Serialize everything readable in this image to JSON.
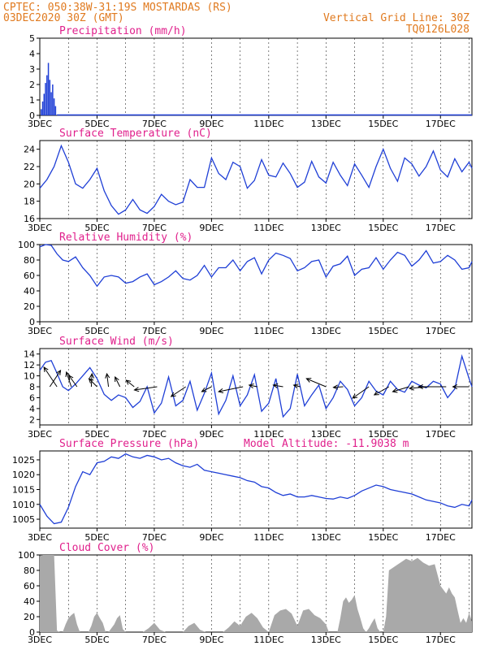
{
  "header": {
    "left_line1": "CPTEC:  050:38W-31:19S  MOSTARDAS (RS)",
    "left_line2": "03DEC2020 30Z (GMT)",
    "right_line1": "Vertical Grid Line: 30Z",
    "right_line2": "TQ0126L028",
    "model_altitude": "Model Altitude: -11.9038 m"
  },
  "colors": {
    "header_text": "#e07a1f",
    "panel_title": "#e0208c",
    "series_line": "#1f3fd6",
    "bar_blue": "#1f3fd6",
    "cloud_fill": "#a9a9a9",
    "wind_arrow": "#000000"
  },
  "x_axis": {
    "ticks": [
      "3DEC",
      "5DEC",
      "7DEC",
      "9DEC",
      "11DEC",
      "13DEC",
      "15DEC",
      "17DEC"
    ],
    "tick_days": [
      3,
      5,
      7,
      9,
      11,
      13,
      15,
      17
    ],
    "range": [
      3,
      18.1
    ]
  },
  "chart_data": [
    {
      "type": "bar",
      "title": "Precipitation (mm/h)",
      "ylim": [
        0,
        5
      ],
      "yticks": [
        0,
        1,
        2,
        3,
        4,
        5
      ],
      "x": [
        3.05,
        3.1,
        3.15,
        3.2,
        3.25,
        3.3,
        3.35,
        3.4,
        3.45,
        3.5,
        3.55
      ],
      "values": [
        0.4,
        0.9,
        1.4,
        2.1,
        2.6,
        3.4,
        2.3,
        1.5,
        2.0,
        1.1,
        0.6
      ]
    },
    {
      "type": "line",
      "title": "Surface Temperature (nC)",
      "ylim": [
        16,
        25
      ],
      "yticks": [
        16,
        18,
        20,
        22,
        24
      ],
      "x": [
        3.0,
        3.25,
        3.5,
        3.75,
        4.0,
        4.25,
        4.5,
        4.75,
        5.0,
        5.25,
        5.5,
        5.75,
        6.0,
        6.25,
        6.5,
        6.75,
        7.0,
        7.25,
        7.5,
        7.75,
        8.0,
        8.25,
        8.5,
        8.75,
        9.0,
        9.25,
        9.5,
        9.75,
        10.0,
        10.25,
        10.5,
        10.75,
        11.0,
        11.25,
        11.5,
        11.75,
        12.0,
        12.25,
        12.5,
        12.75,
        13.0,
        13.25,
        13.5,
        13.75,
        14.0,
        14.25,
        14.5,
        14.75,
        15.0,
        15.25,
        15.5,
        15.75,
        16.0,
        16.25,
        16.5,
        16.75,
        17.0,
        17.25,
        17.5,
        17.75,
        18.0,
        18.1
      ],
      "values": [
        19.5,
        20.5,
        22.0,
        24.4,
        22.5,
        20.0,
        19.5,
        20.5,
        21.8,
        19.2,
        17.5,
        16.5,
        17.0,
        18.2,
        17.0,
        16.6,
        17.4,
        18.8,
        18.0,
        17.6,
        17.9,
        20.5,
        19.6,
        19.6,
        23.0,
        21.2,
        20.5,
        22.5,
        22.0,
        19.5,
        20.4,
        22.8,
        21.0,
        20.8,
        22.4,
        21.2,
        19.6,
        20.2,
        22.6,
        20.8,
        20.1,
        22.5,
        21.0,
        19.8,
        22.3,
        21.0,
        19.6,
        22.0,
        24.0,
        21.8,
        20.3,
        23.0,
        22.3,
        20.9,
        22.0,
        23.8,
        21.6,
        20.8,
        22.9,
        21.4,
        22.5,
        21.8
      ]
    },
    {
      "type": "line",
      "title": "Relative Humidity (%)",
      "ylim": [
        0,
        100
      ],
      "yticks": [
        0,
        20,
        40,
        60,
        80,
        100
      ],
      "x": [
        3.0,
        3.2,
        3.4,
        3.6,
        3.8,
        4.0,
        4.25,
        4.5,
        4.75,
        5.0,
        5.25,
        5.5,
        5.75,
        6.0,
        6.25,
        6.5,
        6.75,
        7.0,
        7.25,
        7.5,
        7.75,
        8.0,
        8.25,
        8.5,
        8.75,
        9.0,
        9.25,
        9.5,
        9.75,
        10.0,
        10.25,
        10.5,
        10.75,
        11.0,
        11.25,
        11.5,
        11.75,
        12.0,
        12.25,
        12.5,
        12.75,
        13.0,
        13.25,
        13.5,
        13.75,
        14.0,
        14.25,
        14.5,
        14.75,
        15.0,
        15.25,
        15.5,
        15.75,
        16.0,
        16.25,
        16.5,
        16.75,
        17.0,
        17.25,
        17.5,
        17.75,
        18.0,
        18.1
      ],
      "values": [
        97,
        100,
        99,
        88,
        80,
        78,
        84,
        70,
        60,
        46,
        58,
        60,
        58,
        50,
        52,
        58,
        62,
        48,
        52,
        58,
        66,
        56,
        54,
        60,
        73,
        58,
        70,
        70,
        80,
        66,
        78,
        83,
        62,
        80,
        89,
        86,
        82,
        66,
        70,
        78,
        80,
        58,
        72,
        75,
        85,
        60,
        68,
        70,
        83,
        68,
        80,
        90,
        86,
        72,
        80,
        92,
        76,
        78,
        86,
        80,
        68,
        70,
        78
      ]
    },
    {
      "type": "line",
      "title": "Surface Wind (m/s)",
      "ylim": [
        1,
        15
      ],
      "yticks": [
        2,
        4,
        6,
        8,
        10,
        12,
        14
      ],
      "x": [
        3.0,
        3.2,
        3.4,
        3.6,
        3.8,
        4.0,
        4.25,
        4.5,
        4.75,
        5.0,
        5.25,
        5.5,
        5.75,
        6.0,
        6.25,
        6.5,
        6.75,
        7.0,
        7.25,
        7.5,
        7.75,
        8.0,
        8.25,
        8.5,
        8.75,
        9.0,
        9.25,
        9.5,
        9.75,
        10.0,
        10.25,
        10.5,
        10.75,
        11.0,
        11.25,
        11.5,
        11.75,
        12.0,
        12.25,
        12.5,
        12.75,
        13.0,
        13.25,
        13.5,
        13.75,
        14.0,
        14.25,
        14.5,
        14.75,
        15.0,
        15.25,
        15.5,
        15.75,
        16.0,
        16.25,
        16.5,
        16.75,
        17.0,
        17.25,
        17.5,
        17.75,
        18.0,
        18.1
      ],
      "values": [
        11,
        12.5,
        12.8,
        10.5,
        8.0,
        7.3,
        8.5,
        10.0,
        11.5,
        9.5,
        6.6,
        5.5,
        6.5,
        6.0,
        4.2,
        5.3,
        8.0,
        3.2,
        5.0,
        9.8,
        4.5,
        5.5,
        9.0,
        3.7,
        6.8,
        10.5,
        3.0,
        5.5,
        10.0,
        4.5,
        6.5,
        10.2,
        3.5,
        5.0,
        9.5,
        2.5,
        4.0,
        10.3,
        4.5,
        6.5,
        8.3,
        4.0,
        6.0,
        9.0,
        7.5,
        4.5,
        6.0,
        9.0,
        7.2,
        6.5,
        9.0,
        7.5,
        7.0,
        9.0,
        8.3,
        7.8,
        9.0,
        8.5,
        6.0,
        7.6,
        13.6,
        9.5,
        8.0
      ],
      "arrows": [
        {
          "x": 3.35,
          "u": 3.3,
          "v": -5.0
        },
        {
          "x": 3.6,
          "u": -4.0,
          "v": -6.0
        },
        {
          "x": 4.1,
          "u": -1.5,
          "v": -4.5
        },
        {
          "x": 4.3,
          "u": -2.5,
          "v": -3.5
        },
        {
          "x": 4.8,
          "u": 0.2,
          "v": -4.0
        },
        {
          "x": 5.0,
          "u": -2.5,
          "v": -2.5
        },
        {
          "x": 5.4,
          "u": -0.5,
          "v": -4.0
        },
        {
          "x": 5.8,
          "u": -1.5,
          "v": -3.0
        },
        {
          "x": 6.3,
          "u": -2.5,
          "v": -2.0
        },
        {
          "x": 7.1,
          "u": -7.0,
          "v": 1.0
        },
        {
          "x": 8.1,
          "u": -4.5,
          "v": 3.0
        },
        {
          "x": 9.0,
          "u": -3.0,
          "v": 1.5
        },
        {
          "x": 10.1,
          "u": -7.5,
          "v": 1.5
        },
        {
          "x": 10.6,
          "u": -2.5,
          "v": -0.5
        },
        {
          "x": 11.5,
          "u": -3.0,
          "v": -0.5
        },
        {
          "x": 12.1,
          "u": -2.0,
          "v": -0.5
        },
        {
          "x": 13.0,
          "u": -6.0,
          "v": -2.5
        },
        {
          "x": 13.6,
          "u": -3.0,
          "v": 0.2
        },
        {
          "x": 14.5,
          "u": -5.0,
          "v": 3.5
        },
        {
          "x": 15.2,
          "u": -4.5,
          "v": 2.5
        },
        {
          "x": 15.9,
          "u": -5.0,
          "v": 1.5
        },
        {
          "x": 16.6,
          "u": -6.0,
          "v": 0.5
        },
        {
          "x": 17.2,
          "u": -8.5,
          "v": 0.0
        },
        {
          "x": 18.0,
          "u": -5.0,
          "v": 0.0
        }
      ]
    },
    {
      "type": "line",
      "title": "Surface Pressure (hPa)",
      "ylim": [
        1002,
        1028
      ],
      "yticks": [
        1005,
        1010,
        1015,
        1020,
        1025
      ],
      "x": [
        3.0,
        3.25,
        3.5,
        3.75,
        4.0,
        4.25,
        4.5,
        4.75,
        5.0,
        5.25,
        5.5,
        5.75,
        6.0,
        6.25,
        6.5,
        6.75,
        7.0,
        7.25,
        7.5,
        7.75,
        8.0,
        8.25,
        8.5,
        8.75,
        9.0,
        9.25,
        9.5,
        9.75,
        10.0,
        10.25,
        10.5,
        10.75,
        11.0,
        11.25,
        11.5,
        11.75,
        12.0,
        12.25,
        12.5,
        12.75,
        13.0,
        13.25,
        13.5,
        13.75,
        14.0,
        14.25,
        14.5,
        14.75,
        15.0,
        15.25,
        15.5,
        15.75,
        16.0,
        16.25,
        16.5,
        16.75,
        17.0,
        17.25,
        17.5,
        17.75,
        18.0,
        18.1
      ],
      "values": [
        1010,
        1006,
        1003.5,
        1004,
        1009,
        1016,
        1021,
        1020,
        1024,
        1024.5,
        1026,
        1025.5,
        1027,
        1026,
        1025.5,
        1026.5,
        1026,
        1025,
        1025.5,
        1024,
        1023,
        1022.5,
        1023.5,
        1021.5,
        1021,
        1020.5,
        1020,
        1019.5,
        1019,
        1018,
        1017.5,
        1016,
        1015.5,
        1014,
        1013,
        1013.5,
        1012.5,
        1012.5,
        1013,
        1012.5,
        1012,
        1011.8,
        1012.5,
        1012,
        1013,
        1014.5,
        1015.5,
        1016.5,
        1016,
        1015,
        1014.5,
        1014,
        1013.5,
        1012.5,
        1011.5,
        1011,
        1010.5,
        1009.5,
        1009,
        1010,
        1009.5,
        1011.5
      ]
    },
    {
      "type": "area",
      "title": "Cloud Cover (%)",
      "ylim": [
        0,
        100
      ],
      "yticks": [
        0,
        20,
        40,
        60,
        80,
        100
      ],
      "x": [
        3.0,
        3.1,
        3.2,
        3.3,
        3.4,
        3.5,
        3.6,
        3.7,
        3.8,
        3.9,
        4.0,
        4.1,
        4.2,
        4.3,
        4.4,
        4.5,
        4.6,
        4.7,
        4.8,
        4.9,
        5.0,
        5.1,
        5.2,
        5.3,
        5.4,
        5.5,
        5.6,
        5.7,
        5.8,
        5.9,
        6.0,
        6.2,
        6.4,
        6.6,
        6.8,
        7.0,
        7.2,
        7.4,
        7.6,
        7.8,
        8.0,
        8.2,
        8.4,
        8.6,
        8.8,
        9.0,
        9.2,
        9.4,
        9.6,
        9.8,
        10.0,
        10.2,
        10.4,
        10.6,
        10.8,
        11.0,
        11.2,
        11.4,
        11.6,
        11.8,
        12.0,
        12.2,
        12.4,
        12.6,
        12.8,
        13.0,
        13.1,
        13.2,
        13.3,
        13.4,
        13.5,
        13.6,
        13.7,
        13.8,
        13.9,
        14.0,
        14.1,
        14.2,
        14.3,
        14.4,
        14.5,
        14.6,
        14.7,
        14.8,
        14.9,
        15.0,
        15.1,
        15.2,
        15.4,
        15.6,
        15.8,
        16.0,
        16.2,
        16.4,
        16.6,
        16.8,
        17.0,
        17.1,
        17.2,
        17.3,
        17.4,
        17.5,
        17.6,
        17.7,
        17.8,
        17.9,
        18.0,
        18.1
      ],
      "values": [
        98,
        100,
        100,
        100,
        100,
        100,
        2,
        0,
        0,
        10,
        18,
        22,
        25,
        10,
        0,
        0,
        0,
        0,
        8,
        20,
        25,
        18,
        12,
        0,
        0,
        5,
        10,
        18,
        22,
        4,
        0,
        0,
        0,
        0,
        5,
        12,
        3,
        0,
        0,
        0,
        0,
        8,
        12,
        3,
        0,
        0,
        0,
        0,
        6,
        14,
        8,
        20,
        25,
        18,
        6,
        0,
        22,
        28,
        30,
        24,
        8,
        28,
        30,
        22,
        18,
        10,
        0,
        0,
        0,
        0,
        18,
        40,
        45,
        38,
        42,
        48,
        30,
        18,
        5,
        0,
        5,
        12,
        18,
        5,
        0,
        0,
        20,
        80,
        85,
        90,
        95,
        92,
        96,
        90,
        86,
        88,
        60,
        55,
        50,
        58,
        50,
        45,
        28,
        12,
        18,
        12,
        25,
        14
      ]
    }
  ]
}
